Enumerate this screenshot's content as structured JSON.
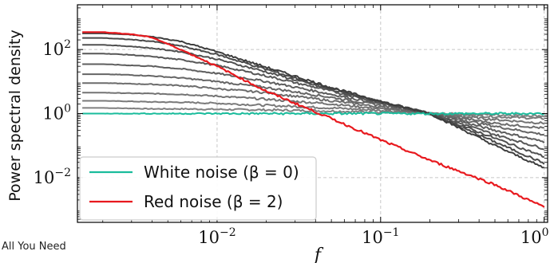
{
  "footer_text": "All You Need",
  "chart_data": {
    "type": "line",
    "xlabel": "f",
    "ylabel": "Power spectral density",
    "xscale": "log",
    "yscale": "log",
    "xlim": [
      0.0014,
      1.05
    ],
    "ylim": [
      0.0004,
      2500
    ],
    "grid": true,
    "x_ticks": [
      {
        "value": 0.01,
        "label": "10^{-2}"
      },
      {
        "value": 0.1,
        "label": "10^{-1}"
      },
      {
        "value": 1,
        "label": "10^{0}"
      }
    ],
    "y_ticks": [
      {
        "value": 100,
        "label": "10^{2}"
      },
      {
        "value": 1,
        "label": "10^{0}"
      },
      {
        "value": 0.01,
        "label": "10^{-2}"
      }
    ],
    "legend": {
      "position": "lower-left",
      "entries": [
        {
          "label": "White noise (β = 0)",
          "color": "#1abc9c"
        },
        {
          "label": "Red noise (β = 2)",
          "color": "#e8191e"
        }
      ]
    },
    "x": [
      0.0015,
      0.002,
      0.003,
      0.004,
      0.006,
      0.01,
      0.02,
      0.05,
      0.1,
      0.2,
      0.5,
      1.0
    ],
    "series": [
      {
        "name": "White noise (β = 0)",
        "color": "#1abc9c",
        "width": 2.0,
        "values": [
          1.0,
          1.0,
          1.0,
          1.0,
          1.0,
          1.0,
          1.0,
          1.0,
          1.0,
          1.0,
          1.0,
          1.0
        ]
      },
      {
        "color": "#808080",
        "width": 2.0,
        "values": [
          1.5,
          1.5,
          1.45,
          1.4,
          1.4,
          1.35,
          1.3,
          1.2,
          1.1,
          1.0,
          0.92,
          0.85
        ]
      },
      {
        "color": "#7a7a7a",
        "width": 2.0,
        "values": [
          2.5,
          2.5,
          2.4,
          2.3,
          2.25,
          2.1,
          1.8,
          1.5,
          1.25,
          1.0,
          0.8,
          0.7
        ]
      },
      {
        "color": "#737373",
        "width": 2.0,
        "values": [
          4.5,
          4.5,
          4.3,
          4.2,
          4.0,
          3.5,
          2.8,
          2.0,
          1.4,
          1.0,
          0.65,
          0.5
        ]
      },
      {
        "color": "#6c6c6c",
        "width": 2.0,
        "values": [
          9,
          9,
          8.5,
          8.2,
          7.5,
          6.0,
          4.5,
          2.5,
          1.6,
          1.0,
          0.5,
          0.35
        ]
      },
      {
        "color": "#656565",
        "width": 2.0,
        "values": [
          17,
          17,
          16,
          15,
          13,
          10,
          6.5,
          3.2,
          1.8,
          1.0,
          0.4,
          0.22
        ]
      },
      {
        "color": "#5e5e5e",
        "width": 2.0,
        "values": [
          35,
          35,
          32,
          30,
          25,
          18,
          10,
          4.0,
          2.0,
          1.0,
          0.3,
          0.13
        ]
      },
      {
        "color": "#575757",
        "width": 2.0,
        "values": [
          75,
          75,
          68,
          60,
          48,
          32,
          15,
          5.0,
          2.2,
          1.0,
          0.22,
          0.08
        ]
      },
      {
        "color": "#505050",
        "width": 2.0,
        "values": [
          140,
          140,
          125,
          110,
          85,
          50,
          20,
          5.5,
          2.3,
          1.0,
          0.17,
          0.045
        ]
      },
      {
        "color": "#494949",
        "width": 2.0,
        "values": [
          230,
          230,
          205,
          180,
          130,
          70,
          24,
          6.0,
          2.3,
          1.0,
          0.13,
          0.028
        ]
      },
      {
        "color": "#3d3d3d",
        "width": 2.0,
        "values": [
          320,
          320,
          290,
          250,
          180,
          85,
          28,
          6.5,
          2.4,
          1.0,
          0.1,
          0.02
        ]
      },
      {
        "name": "Red noise (β = 2)",
        "color": "#e8191e",
        "width": 2.2,
        "values": [
          350,
          350,
          300,
          240,
          100,
          30,
          5,
          0.7,
          0.15,
          0.035,
          0.006,
          0.0012
        ]
      }
    ]
  }
}
